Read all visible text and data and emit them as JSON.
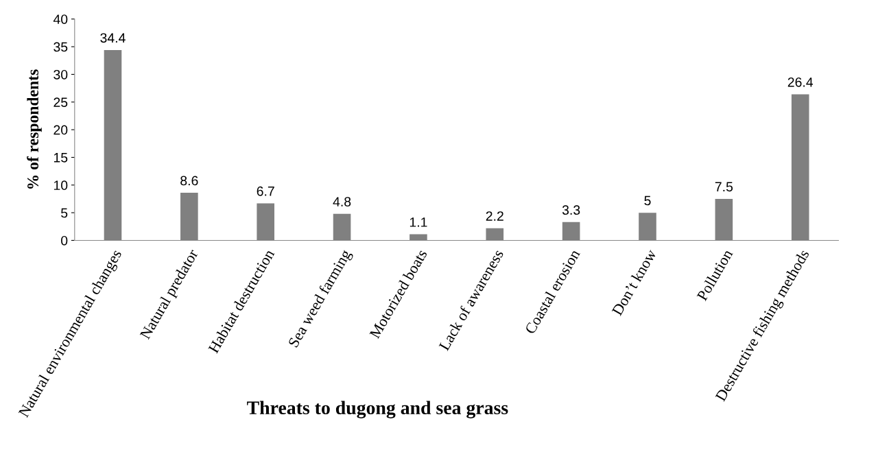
{
  "chart_data": {
    "type": "bar",
    "xlabel": "Threats to dugong and sea grass",
    "ylabel": "% of respondents",
    "categories": [
      "Natural environmental changes",
      "Natural predator",
      "Habitat destruction",
      "Sea weed farming",
      "Motorized boats",
      "Lack of awareness",
      "Coastal erosion",
      "Don’t know",
      "Pollution",
      "Destructive fishing methods"
    ],
    "values": [
      34.4,
      8.6,
      6.7,
      4.8,
      1.1,
      2.2,
      3.3,
      5,
      7.5,
      26.4
    ],
    "color": "#808080",
    "ylim": [
      0,
      40
    ],
    "yticks": [
      0,
      5,
      10,
      15,
      20,
      25,
      30,
      35,
      40
    ],
    "data_labels": true,
    "grid": false,
    "legend": false
  }
}
